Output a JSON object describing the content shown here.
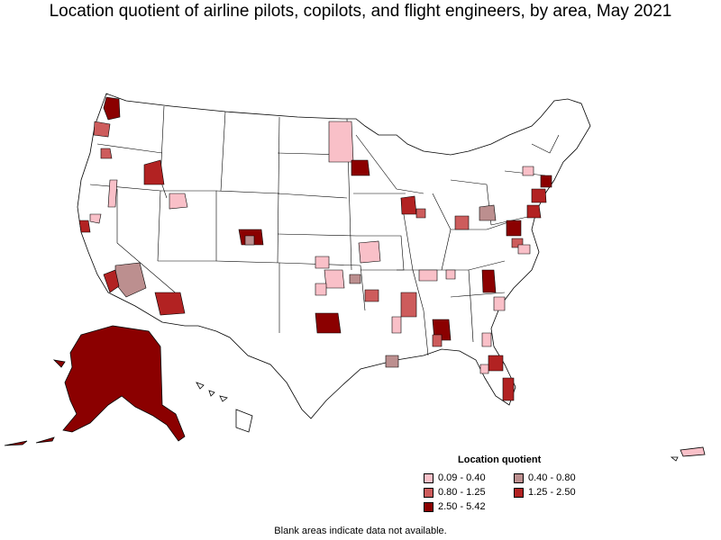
{
  "title": "Location quotient of airline pilots, copilots, and flight engineers, by area, May 2021",
  "legend": {
    "title": "Location quotient",
    "items": [
      {
        "label": "0.09 - 0.40",
        "color": "#f9c0c8"
      },
      {
        "label": "0.40 - 0.80",
        "color": "#bc8f8f"
      },
      {
        "label": "0.80 - 1.25",
        "color": "#cd5c5c"
      },
      {
        "label": "1.25 - 2.50",
        "color": "#b22222"
      },
      {
        "label": "2.50 - 5.42",
        "color": "#8b0000"
      }
    ]
  },
  "footnote": "Blank areas indicate data not available.",
  "colors": {
    "background": "#ffffff",
    "land": "#ffffff",
    "border": "#000000"
  }
}
